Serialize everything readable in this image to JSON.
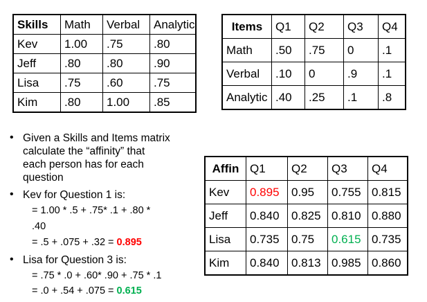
{
  "skills": {
    "headers": [
      "Skills",
      "Math",
      "Verbal",
      "Analytic"
    ],
    "rows": [
      [
        "Kev",
        "1.00",
        ".75",
        ".80"
      ],
      [
        "Jeff",
        ".80",
        ".80",
        ".90"
      ],
      [
        "Lisa",
        ".75",
        ".60",
        ".75"
      ],
      [
        "Kim",
        ".80",
        "1.00",
        ".85"
      ]
    ]
  },
  "items": {
    "headers": [
      "Items",
      "Q1",
      "Q2",
      "Q3",
      "Q4"
    ],
    "rows": [
      [
        "Math",
        ".50",
        ".75",
        "0",
        ".1"
      ],
      [
        "Verbal",
        ".10",
        "0",
        ".9",
        ".1"
      ],
      [
        "Analytic",
        ".40",
        ".25",
        ".1",
        ".8"
      ]
    ]
  },
  "affin": {
    "headers": [
      "Affin",
      "Q1",
      "Q2",
      "Q3",
      "Q4"
    ],
    "rows": [
      [
        "Kev",
        "0.895",
        "0.95",
        "0.755",
        "0.815"
      ],
      [
        "Jeff",
        "0.840",
        "0.825",
        "0.810",
        "0.880"
      ],
      [
        "Lisa",
        "0.735",
        "0.75",
        "0.615",
        "0.735"
      ],
      [
        "Kim",
        "0.840",
        "0.813",
        "0.985",
        "0.860"
      ]
    ],
    "highlight_colors": {
      "kev_q1": "#ff0000",
      "lisa_q3": "#00b050"
    }
  },
  "notes": {
    "bullet_symbol": "•",
    "b1_l1": "Given a Skills and Items matrix",
    "b1_l2": "calculate the “affinity” that",
    "b1_l3": "each  person has for each",
    "b1_l4": "question",
    "b2": "Kev for Question 1 is:",
    "b2_s1": "= 1.00 * .5 + .75* .1 + .80 *",
    "b2_s2": ".40",
    "b2_s3_prefix": "= .5 + .075 + .32  = ",
    "b2_s3_result": "0.895",
    "b3": "Lisa for Question 3 is:",
    "b3_s1": "= .75 * .0 + .60* .90 + .75 * .1",
    "b3_s2_prefix": "= .0 + .54 + .075 = ",
    "b3_s2_result": "0.615"
  }
}
